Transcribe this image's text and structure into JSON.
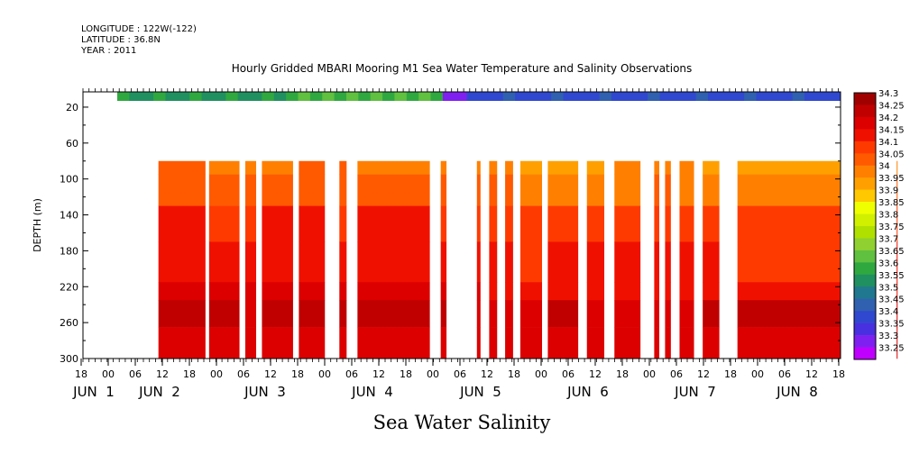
{
  "chart_data": {
    "type": "heatmap",
    "meta_lines": [
      "LONGITUDE : 122W(-122)",
      "LATITUDE : 36.8N",
      "YEAR : 2011"
    ],
    "title": "Hourly Gridded MBARI Mooring M1 Sea Water Temperature and Salinity Observations",
    "ylabel": "DEPTH (m)",
    "xlabel": "Sea Water Salinity",
    "y_ticks": [
      20,
      60,
      100,
      140,
      180,
      220,
      260,
      300
    ],
    "ylim": [
      300,
      3
    ],
    "x_hour_ticks": [
      "18",
      "00",
      "06",
      "12",
      "18",
      "00",
      "06",
      "12",
      "18",
      "00",
      "06",
      "12",
      "18",
      "00",
      "06",
      "12",
      "18",
      "00",
      "06",
      "12",
      "18",
      "00",
      "06",
      "12",
      "18",
      "00",
      "06",
      "12",
      "18"
    ],
    "x_day_labels": [
      "JUN  1",
      "JUN  2",
      "JUN  3",
      "JUN  4",
      "JUN  5",
      "JUN  6",
      "JUN  7",
      "JUN  8"
    ],
    "colorbar_labels": [
      "34.3",
      "34.25",
      "34.2",
      "34.15",
      "34.1",
      "34.05",
      "34",
      "33.95",
      "33.9",
      "33.85",
      "33.8",
      "33.75",
      "33.7",
      "33.65",
      "33.6",
      "33.55",
      "33.5",
      "33.45",
      "33.4",
      "33.35",
      "33.3",
      "33.25"
    ],
    "colorbar_colors": [
      "#a00000",
      "#c00000",
      "#dc0000",
      "#f01000",
      "#ff3a00",
      "#ff5a00",
      "#ff8000",
      "#ffa000",
      "#ffc800",
      "#f0ff00",
      "#d0f000",
      "#b0e000",
      "#90d030",
      "#60c040",
      "#30a840",
      "#209060",
      "#207890",
      "#3060b0",
      "#3048d0",
      "#4830e0",
      "#8020f0",
      "#c000ff"
    ],
    "columns": [
      {
        "start": 0.0,
        "end": 0.7,
        "surface_only": true,
        "surface_value": 33.58
      },
      {
        "start": 0.7,
        "end": 1.35,
        "profile": [
          34.03,
          34.03,
          34.13,
          34.13,
          34.18,
          34.23,
          34.18
        ]
      },
      {
        "start": 1.4,
        "end": 1.82,
        "profile": [
          34.02,
          34.03,
          34.12,
          34.13,
          34.18,
          34.23,
          34.19
        ]
      },
      {
        "start": 1.9,
        "end": 2.05,
        "profile": [
          34.0,
          34.04,
          34.12,
          34.13,
          34.18,
          34.22,
          34.18
        ]
      },
      {
        "start": 2.13,
        "end": 2.56,
        "profile": [
          34.02,
          34.05,
          34.13,
          34.13,
          34.18,
          34.24,
          34.19
        ]
      },
      {
        "start": 2.64,
        "end": 3.0,
        "profile": [
          34.03,
          34.05,
          34.13,
          34.13,
          34.18,
          34.23,
          34.18
        ]
      },
      {
        "start": 3.2,
        "end": 3.3,
        "profile": [
          34.03,
          34.05,
          34.12,
          34.13,
          34.18,
          34.23,
          34.19
        ]
      },
      {
        "start": 3.45,
        "end": 4.45,
        "profile": [
          34.02,
          34.04,
          34.13,
          34.14,
          34.18,
          34.24,
          34.18
        ]
      },
      {
        "start": 4.6,
        "end": 4.68,
        "profile": [
          34.02,
          34.04,
          34.12,
          34.14,
          34.18,
          34.23,
          34.18
        ]
      },
      {
        "start": 5.1,
        "end": 5.15,
        "profile": [
          34.01,
          34.04,
          34.12,
          34.13,
          34.18,
          34.22,
          34.18
        ]
      },
      {
        "start": 5.27,
        "end": 5.38,
        "profile": [
          34.0,
          34.04,
          34.12,
          34.13,
          34.17,
          34.22,
          34.18
        ]
      },
      {
        "start": 5.49,
        "end": 5.6,
        "profile": [
          33.99,
          34.03,
          34.12,
          34.13,
          34.17,
          34.22,
          34.18
        ]
      },
      {
        "start": 5.7,
        "end": 6.0,
        "profile": [
          33.96,
          34.0,
          34.09,
          34.12,
          34.17,
          34.22,
          34.18
        ]
      },
      {
        "start": 6.08,
        "end": 6.5,
        "profile": [
          33.96,
          34.01,
          34.1,
          34.13,
          34.17,
          34.23,
          34.18
        ]
      },
      {
        "start": 6.62,
        "end": 6.86,
        "profile": [
          33.97,
          34.02,
          34.11,
          34.13,
          34.17,
          34.22,
          34.18
        ]
      },
      {
        "start": 7.0,
        "end": 7.36,
        "profile": [
          33.98,
          34.02,
          34.11,
          34.13,
          34.17,
          34.22,
          34.18
        ]
      },
      {
        "start": 7.55,
        "end": 7.62,
        "profile": [
          33.98,
          34.03,
          34.11,
          34.13,
          34.17,
          34.22,
          34.18
        ]
      },
      {
        "start": 7.7,
        "end": 7.78,
        "profile": [
          33.98,
          34.03,
          34.11,
          34.13,
          34.17,
          34.22,
          34.18
        ]
      },
      {
        "start": 7.9,
        "end": 8.1,
        "profile": [
          33.98,
          34.02,
          34.11,
          34.13,
          34.17,
          34.22,
          34.18
        ]
      },
      {
        "start": 8.22,
        "end": 8.45,
        "profile": [
          33.97,
          34.02,
          34.1,
          34.13,
          34.17,
          34.23,
          34.19
        ]
      },
      {
        "start": 8.7,
        "end": 10.2,
        "profile": [
          33.95,
          34.0,
          34.08,
          34.12,
          34.16,
          34.23,
          34.19
        ]
      },
      {
        "start": 10.33,
        "end": 10.75,
        "profile": [
          33.98,
          34.03,
          34.1,
          34.13,
          34.17,
          34.23,
          34.19
        ]
      },
      {
        "start": 10.9,
        "end": 11.05,
        "profile": [
          33.98,
          34.03,
          34.1,
          34.13,
          34.17,
          34.22,
          34.18
        ]
      }
    ]
  }
}
